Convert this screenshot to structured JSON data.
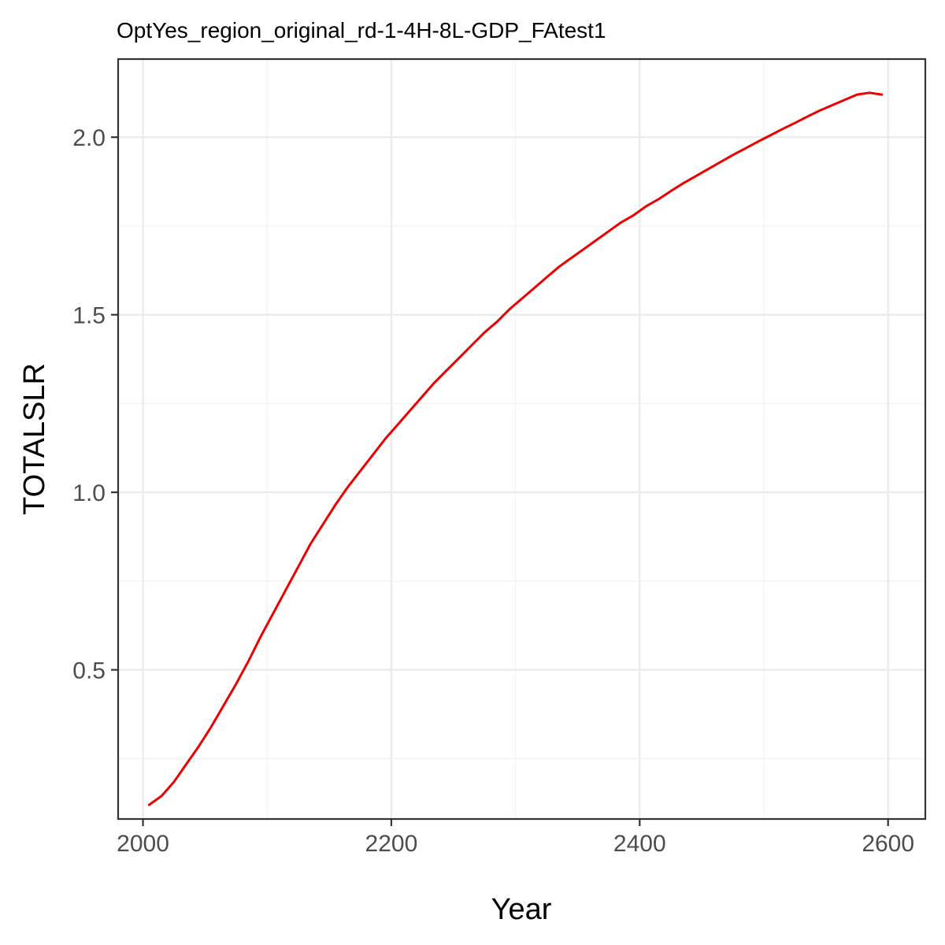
{
  "chart_data": {
    "type": "line",
    "title": "OptYes_region_original_rd-1-4H-8L-GDP_FAtest1",
    "xlabel": "Year",
    "ylabel": "TOTALSLR",
    "xlim": [
      1980,
      2630
    ],
    "ylim": [
      0.08,
      2.22
    ],
    "x_ticks": [
      2000,
      2200,
      2400,
      2600
    ],
    "x_tick_labels": [
      "2000",
      "2200",
      "2400",
      "2600"
    ],
    "y_ticks": [
      0.5,
      1.0,
      1.5,
      2.0
    ],
    "y_tick_labels": [
      "0.5",
      "1.0",
      "1.5",
      "2.0"
    ],
    "grid": true,
    "legend": "none",
    "series": [
      {
        "color": "#ee0000",
        "x": [
          2005,
          2015,
          2025,
          2035,
          2045,
          2055,
          2065,
          2075,
          2085,
          2095,
          2105,
          2115,
          2125,
          2135,
          2145,
          2155,
          2165,
          2175,
          2185,
          2195,
          2205,
          2215,
          2225,
          2235,
          2245,
          2255,
          2265,
          2275,
          2285,
          2295,
          2305,
          2315,
          2325,
          2335,
          2345,
          2355,
          2365,
          2375,
          2385,
          2395,
          2405,
          2415,
          2425,
          2435,
          2445,
          2455,
          2465,
          2475,
          2485,
          2495,
          2505,
          2515,
          2525,
          2535,
          2545,
          2555,
          2565,
          2575,
          2585,
          2595
        ],
        "values": [
          0.12,
          0.145,
          0.185,
          0.235,
          0.285,
          0.34,
          0.4,
          0.46,
          0.525,
          0.595,
          0.66,
          0.725,
          0.79,
          0.855,
          0.91,
          0.965,
          1.015,
          1.06,
          1.105,
          1.15,
          1.19,
          1.23,
          1.27,
          1.31,
          1.345,
          1.38,
          1.415,
          1.45,
          1.48,
          1.515,
          1.545,
          1.575,
          1.605,
          1.635,
          1.66,
          1.685,
          1.71,
          1.735,
          1.76,
          1.78,
          1.805,
          1.825,
          1.848,
          1.87,
          1.89,
          1.91,
          1.93,
          1.95,
          1.968,
          1.987,
          2.005,
          2.023,
          2.04,
          2.058,
          2.075,
          2.09,
          2.105,
          2.12,
          2.125,
          2.12
        ]
      }
    ]
  }
}
